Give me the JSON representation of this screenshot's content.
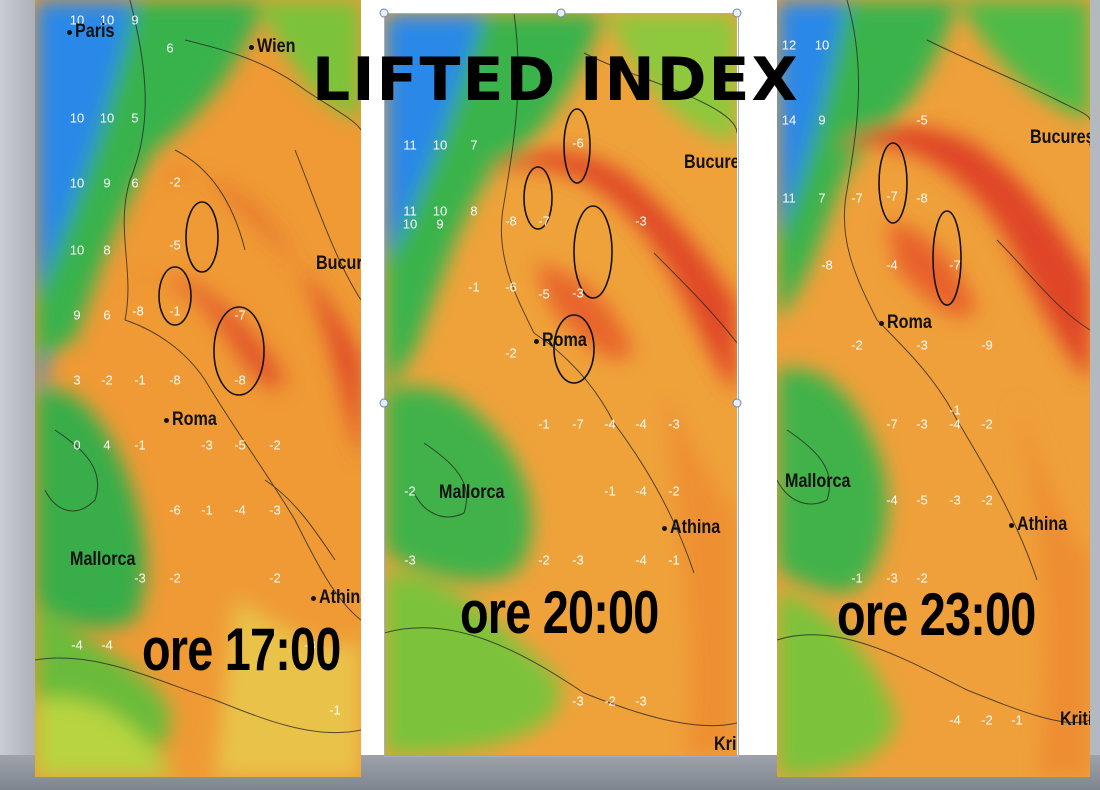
{
  "title": "LIFTED INDEX",
  "panels": [
    {
      "id": "p1",
      "caption": "ore 17:00",
      "cities": [
        {
          "name": "Paris"
        },
        {
          "name": "Wien"
        },
        {
          "name": "Bucures"
        },
        {
          "name": "Roma"
        },
        {
          "name": "Mallorca"
        },
        {
          "name": "Athina"
        }
      ],
      "values": [
        "10",
        "10",
        "9",
        "6",
        "10",
        "10",
        "5",
        "10",
        "9",
        "6",
        "10",
        "8",
        "-2",
        "-5",
        "9",
        "6",
        "-8",
        "-1",
        "-7",
        "-8",
        "3",
        "-2",
        "-1",
        "-8",
        "0",
        "4",
        "-1",
        "-6",
        "-3",
        "-5",
        "-2",
        "-1",
        "-4",
        "-3",
        "-4",
        "-4",
        "-3",
        "-2",
        "-2",
        "-3",
        "-1"
      ]
    },
    {
      "id": "p2",
      "caption": "ore 20:00",
      "cities": [
        {
          "name": "Bucures"
        },
        {
          "name": "Roma"
        },
        {
          "name": "Mallorca"
        },
        {
          "name": "Athina"
        },
        {
          "name": "Kri"
        }
      ],
      "values": [
        "11",
        "10",
        "7",
        "11",
        "10",
        "8",
        "-6",
        "10",
        "9",
        "-8",
        "-7",
        "-3",
        "-1",
        "-6",
        "-5",
        "-3",
        "-2",
        "-1",
        "-7",
        "-4",
        "-4",
        "-3",
        "-2",
        "-1",
        "-4",
        "-2",
        "-3",
        "-2",
        "-3",
        "-4",
        "-1",
        "-3",
        "-2",
        "-3"
      ]
    },
    {
      "id": "p3",
      "caption": "ore 23:00",
      "cities": [
        {
          "name": "București"
        },
        {
          "name": "Roma"
        },
        {
          "name": "Mallorca"
        },
        {
          "name": "Athina"
        },
        {
          "name": "Kriti"
        }
      ],
      "values": [
        "12",
        "10",
        "14",
        "9",
        "11",
        "7",
        "-7",
        "-7",
        "-5",
        "-8",
        "-4",
        "-7",
        "-9",
        "-8",
        "-2",
        "-3",
        "-1",
        "-7",
        "-3",
        "-4",
        "-2",
        "-4",
        "-5",
        "-3",
        "-2",
        "-1",
        "-3",
        "-2",
        "-4",
        "-2",
        "-1"
      ]
    }
  ],
  "legend_colors": {
    "very_stable": "#2d86e6",
    "stable": "#36b24a",
    "neutral": "#e6c733",
    "unstable": "#ef8a2c",
    "very_unstable": "#e14428"
  }
}
